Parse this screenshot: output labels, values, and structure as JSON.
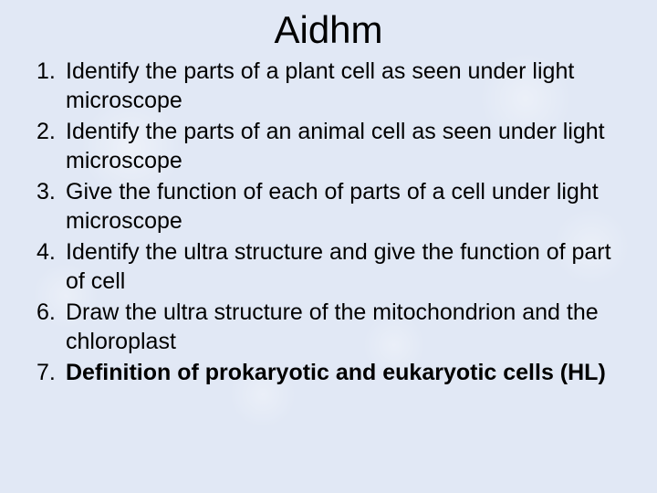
{
  "title": "Aidhm",
  "background_color": "#e1e8f5",
  "text_color": "#000000",
  "title_fontsize": 42,
  "body_fontsize": 25,
  "font_family": "Arial",
  "items": [
    {
      "num": "1",
      "text": "Identify the parts of a plant cell as seen under light microscope",
      "bold": false
    },
    {
      "num": "2",
      "text": "Identify the parts of an animal  cell as seen under light microscope",
      "bold": false
    },
    {
      "num": "3",
      "text": "Give the function of each of parts of a cell under light microscope",
      "bold": false
    },
    {
      "num": "4",
      "text": "Identify the ultra structure and give the function of part of cell",
      "bold": false
    },
    {
      "num": "6",
      "text": "Draw the ultra structure of the mitochondrion and the chloroplast",
      "bold": false
    },
    {
      "num": "7",
      "text": "Definition of prokaryotic and eukaryotic cells (HL)",
      "bold": true
    }
  ]
}
